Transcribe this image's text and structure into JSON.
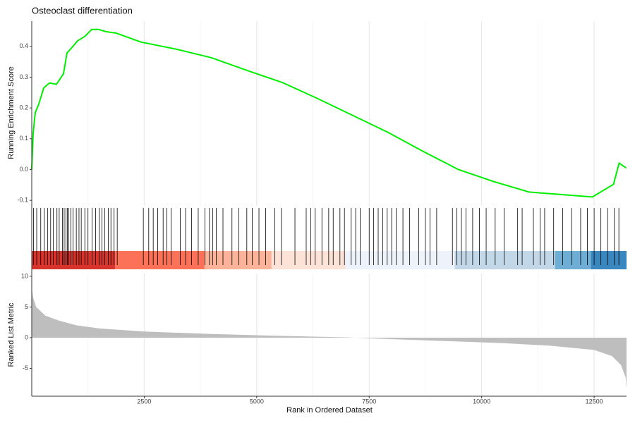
{
  "chart_data": {
    "type": "gsea",
    "title": "Osteoclast differentiation",
    "xlabel": "Rank in Ordered Dataset",
    "xlim": [
      0,
      13220
    ],
    "xticks": [
      2500,
      5000,
      7500,
      10000,
      12500
    ],
    "x_minor_grid": [
      1250,
      3750,
      6250,
      8750,
      11250
    ],
    "grid": true,
    "score": {
      "ylabel": "Running Enrichment Score",
      "color": "#00ee00",
      "ylim": [
        -0.118,
        0.482
      ],
      "yticks": [
        -0.1,
        {
          "value": 0,
          "label": "0.0"
        },
        0.1,
        0.2,
        0.3,
        0.4
      ],
      "x": [
        0,
        31,
        78,
        157,
        266,
        392,
        549,
        705,
        784,
        862,
        1019,
        1176,
        1332,
        1489,
        1646,
        1881,
        2429,
        3213,
        3997,
        4781,
        5564,
        6348,
        7132,
        7915,
        8699,
        9483,
        10266,
        11050,
        11834,
        12461,
        12931,
        13056,
        13213
      ],
      "values": [
        0,
        0.117,
        0.185,
        0.213,
        0.265,
        0.281,
        0.277,
        0.311,
        0.379,
        0.391,
        0.418,
        0.432,
        0.455,
        0.455,
        0.448,
        0.443,
        0.414,
        0.391,
        0.363,
        0.322,
        0.283,
        0.231,
        0.176,
        0.121,
        0.059,
        0,
        -0.039,
        -0.073,
        -0.082,
        -0.089,
        -0.048,
        0.021,
        0.005
      ]
    },
    "hits": {
      "color": "#000000",
      "x": [
        40,
        110,
        200,
        280,
        350,
        420,
        480,
        560,
        610,
        680,
        720,
        760,
        790,
        820,
        870,
        920,
        990,
        1050,
        1100,
        1180,
        1250,
        1340,
        1420,
        1500,
        1560,
        1620,
        1700,
        1760,
        1830,
        1900,
        2480,
        2600,
        2700,
        2800,
        2920,
        3000,
        3100,
        3300,
        3420,
        3550,
        3700,
        3850,
        3950,
        4020,
        4100,
        4250,
        4450,
        4600,
        4780,
        4900,
        5050,
        5200,
        5400,
        5550,
        5850,
        6100,
        6200,
        6300,
        6450,
        6600,
        6700,
        6850,
        6950,
        7100,
        7200,
        7300,
        7500,
        7600,
        7700,
        7800,
        7900,
        8000,
        8100,
        8250,
        8400,
        8600,
        8750,
        8850,
        9000,
        9350,
        9450,
        9550,
        9650,
        9800,
        9950,
        10100,
        10300,
        10500,
        10800,
        10900,
        11150,
        11300,
        11400,
        11600,
        11800,
        12000,
        12200,
        12350,
        12500,
        12650,
        12800,
        12950,
        13050
      ]
    },
    "color_bar": {
      "breaks": [
        0,
        1850,
        3840,
        5330,
        6970,
        9400,
        11630,
        12430,
        13220
      ],
      "colors": [
        "#d9342b",
        "#fb7258",
        "#fcb39a",
        "#fde3d7",
        "#edf2fb",
        "#c2d8e8",
        "#6eaed5",
        "#3a87bf"
      ]
    },
    "metric": {
      "ylabel": "Ranked List Metric",
      "color": "#bebebe",
      "ylim": [
        -9.54,
        10.45
      ],
      "yticks": [
        -5,
        0,
        5,
        10
      ],
      "x": [
        0,
        30,
        100,
        300,
        600,
        1000,
        1500,
        2500,
        4000,
        5500,
        7000,
        7500,
        9000,
        10500,
        11500,
        12500,
        12900,
        13100,
        13200,
        13220
      ],
      "values": [
        8.0,
        6.5,
        5.0,
        3.6,
        2.8,
        2.0,
        1.5,
        1.0,
        0.6,
        0.3,
        0.05,
        -0.1,
        -0.5,
        -0.9,
        -1.3,
        -2.0,
        -3.0,
        -4.5,
        -6.5,
        -8.3
      ]
    }
  }
}
